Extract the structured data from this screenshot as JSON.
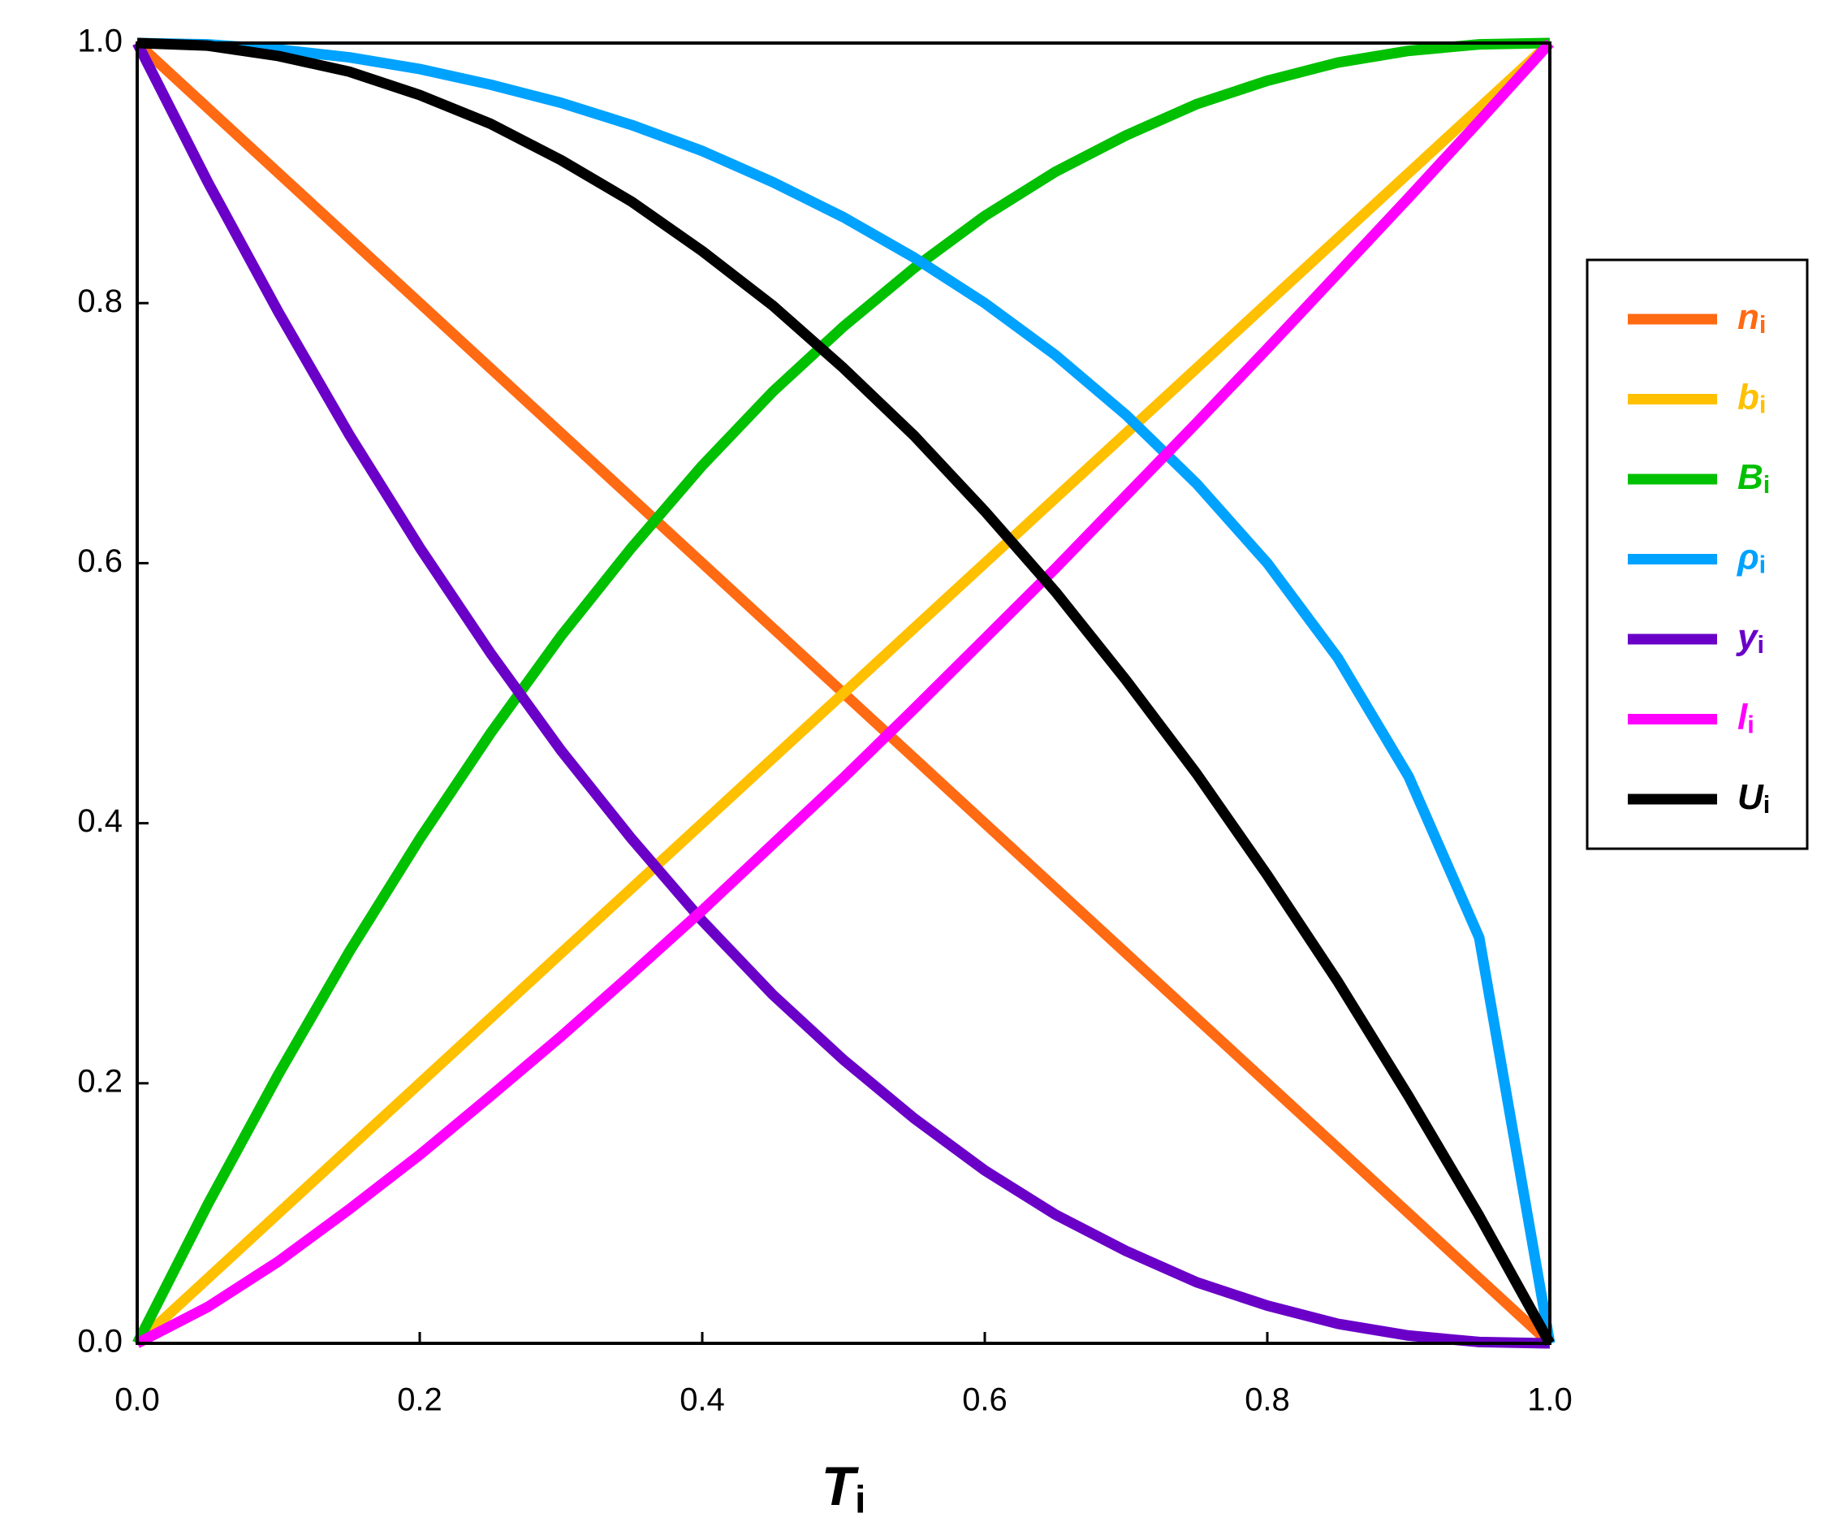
{
  "chart_data": {
    "type": "line",
    "xlabel": "Ti",
    "x": [
      0,
      0.05,
      0.1,
      0.15,
      0.2,
      0.25,
      0.3,
      0.35,
      0.4,
      0.45,
      0.5,
      0.55,
      0.6,
      0.65,
      0.7,
      0.75,
      0.8,
      0.85,
      0.9,
      0.95,
      1
    ],
    "series": [
      {
        "name": "ni",
        "color": "#ff6a13",
        "values": [
          1,
          0.95,
          0.9,
          0.85,
          0.8,
          0.75,
          0.7,
          0.65,
          0.6,
          0.55,
          0.5,
          0.45,
          0.4,
          0.35,
          0.3,
          0.25,
          0.2,
          0.15,
          0.1,
          0.05,
          0
        ]
      },
      {
        "name": "bi",
        "color": "#ffc000",
        "values": [
          0,
          0.05,
          0.1,
          0.15,
          0.2,
          0.25,
          0.3,
          0.35,
          0.4,
          0.45,
          0.5,
          0.55,
          0.6,
          0.65,
          0.7,
          0.75,
          0.8,
          0.85,
          0.9,
          0.95,
          1
        ]
      },
      {
        "name": "Bi",
        "color": "#00c000",
        "values": [
          0,
          0.107,
          0.207,
          0.301,
          0.388,
          0.469,
          0.544,
          0.612,
          0.675,
          0.732,
          0.782,
          0.827,
          0.867,
          0.901,
          0.929,
          0.953,
          0.971,
          0.985,
          0.994,
          0.999,
          1
        ]
      },
      {
        "name": "ρi",
        "color": "#00a2ff",
        "values": [
          1,
          0.999,
          0.995,
          0.989,
          0.98,
          0.968,
          0.954,
          0.937,
          0.917,
          0.893,
          0.866,
          0.835,
          0.8,
          0.76,
          0.714,
          0.661,
          0.6,
          0.527,
          0.436,
          0.312,
          0
        ]
      },
      {
        "name": "yi",
        "color": "#6a00c8",
        "values": [
          1,
          0.893,
          0.793,
          0.699,
          0.612,
          0.531,
          0.456,
          0.388,
          0.325,
          0.268,
          0.218,
          0.173,
          0.133,
          0.099,
          0.071,
          0.047,
          0.029,
          0.015,
          0.006,
          0.001,
          0
        ]
      },
      {
        "name": "li",
        "color": "#ff00ff",
        "values": [
          0,
          0.028,
          0.063,
          0.103,
          0.145,
          0.19,
          0.236,
          0.284,
          0.333,
          0.384,
          0.435,
          0.488,
          0.542,
          0.596,
          0.652,
          0.708,
          0.765,
          0.823,
          0.881,
          0.94,
          1
        ]
      },
      {
        "name": "Ui",
        "color": "#000000",
        "values": [
          1,
          0.998,
          0.99,
          0.978,
          0.96,
          0.938,
          0.91,
          0.878,
          0.84,
          0.798,
          0.75,
          0.698,
          0.64,
          0.578,
          0.51,
          0.438,
          0.36,
          0.278,
          0.19,
          0.098,
          0
        ]
      }
    ],
    "xlim": [
      0,
      1
    ],
    "ylim": [
      0,
      1
    ],
    "xticks": [
      {
        "value": 0,
        "label": "0.0"
      },
      0.2,
      0.4,
      0.6,
      0.8,
      {
        "value": 1,
        "label": "1.0"
      }
    ],
    "yticks": [
      {
        "value": 0,
        "label": "0.0"
      },
      0.2,
      0.4,
      0.6,
      0.8,
      {
        "value": 1,
        "label": "1.0"
      }
    ],
    "grid": false,
    "legend": "right"
  }
}
